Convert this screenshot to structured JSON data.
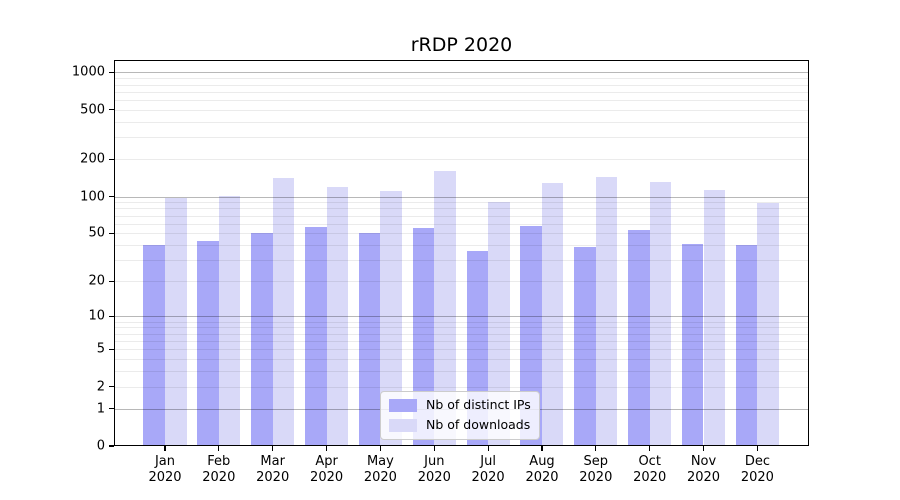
{
  "figure": {
    "background": "#ffffff"
  },
  "chart_data": {
    "type": "bar",
    "title": "rRDP 2020",
    "categories": [
      "Jan",
      "Feb",
      "Mar",
      "Apr",
      "May",
      "Jun",
      "Jul",
      "Aug",
      "Sep",
      "Oct",
      "Nov",
      "Dec"
    ],
    "category_year": "2020",
    "series": [
      {
        "name": "Nb of distinct IPs",
        "color": "#a8a8f8",
        "values": [
          40,
          43,
          50,
          57,
          50,
          55,
          36,
          58,
          39,
          53,
          41,
          40
        ]
      },
      {
        "name": "Nb of downloads",
        "color": "#d9d9f8",
        "values": [
          97,
          101,
          140,
          120,
          111,
          162,
          90,
          128,
          145,
          130,
          113,
          88
        ]
      }
    ],
    "xlabel": "",
    "ylabel": "",
    "y_axis": {
      "scale": "log10(value+1)",
      "tick_values": [
        0,
        1,
        2,
        5,
        10,
        20,
        50,
        100,
        200,
        500,
        1000
      ],
      "major_grid_values": [
        1,
        10,
        100,
        1000
      ],
      "minor_grid_values": [
        2,
        3,
        4,
        5,
        6,
        7,
        8,
        9,
        20,
        30,
        40,
        50,
        60,
        70,
        80,
        90,
        200,
        300,
        400,
        500,
        600,
        700,
        800,
        900
      ],
      "ylim": [
        0,
        1250
      ],
      "grid": true
    },
    "legend": {
      "position": "lower center",
      "entries": [
        "Nb of distinct IPs",
        "Nb of downloads"
      ]
    }
  }
}
